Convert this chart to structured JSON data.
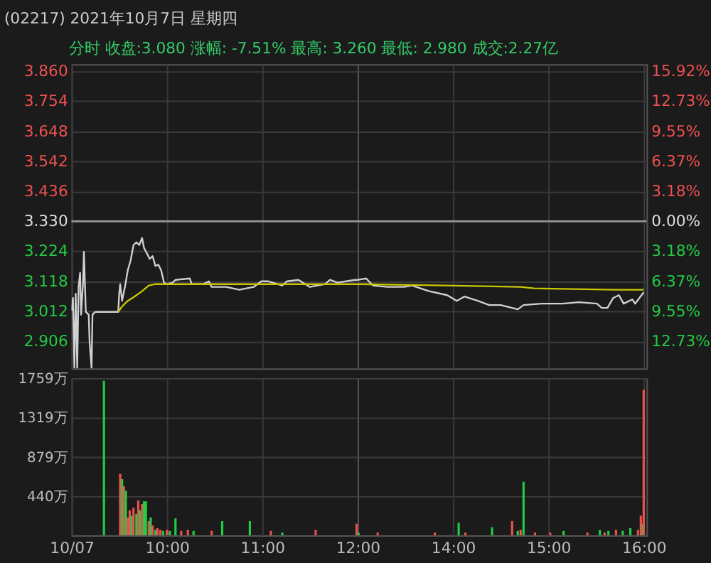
{
  "chart_data": [
    {
      "type": "line",
      "title": "(02217) 2021年10月7日 星期四",
      "subtitle": "分时  收盘:3.080  涨幅: -7.51%  最高: 3.260  最低: 2.980  成交:2.27亿",
      "series": [
        {
          "color": "#d0d0d0",
          "x": [
            9.0,
            9.015,
            9.03,
            9.044,
            9.06,
            9.074,
            9.09,
            9.1,
            9.12,
            9.13,
            9.15,
            9.18,
            9.19,
            9.21,
            9.22,
            9.25,
            9.49,
            9.5,
            9.51,
            9.53,
            9.56,
            9.59,
            9.62,
            9.65,
            9.68,
            9.71,
            9.74,
            9.76,
            9.79,
            9.82,
            9.85,
            9.88,
            9.91,
            9.94,
            9.97,
            10.0,
            10.06,
            10.09,
            10.24,
            10.26,
            10.38,
            10.44,
            10.47,
            10.62,
            10.76,
            10.91,
            10.99,
            11.06,
            11.21,
            11.26,
            11.38,
            11.5,
            11.66,
            11.71,
            11.79,
            11.97,
            12.0
          ],
          "values": [
            3.014,
            3.059,
            2.812,
            3.074,
            2.812,
            3.098,
            3.148,
            3.0,
            3.108,
            3.222,
            3.01,
            3.0,
            2.901,
            2.812,
            3.0,
            3.01,
            3.01,
            3.074,
            3.108,
            3.049,
            3.098,
            3.157,
            3.192,
            3.246,
            3.256,
            3.246,
            3.271,
            3.236,
            3.217,
            3.197,
            3.207,
            3.172,
            3.177,
            3.157,
            3.113,
            3.108,
            3.113,
            3.123,
            3.128,
            3.108,
            3.108,
            3.118,
            3.098,
            3.098,
            3.088,
            3.098,
            3.118,
            3.118,
            3.103,
            3.118,
            3.123,
            3.098,
            3.108,
            3.123,
            3.113,
            3.123,
            3.123
          ]
        },
        {
          "color": "#c8c800",
          "x": [
            9.49,
            9.53,
            9.59,
            9.66,
            9.74,
            9.81,
            9.88,
            11.21,
            12.0
          ],
          "values": [
            3.01,
            3.029,
            3.049,
            3.064,
            3.083,
            3.103,
            3.108,
            3.108,
            3.108
          ]
        }
      ],
      "xlim": [
        9,
        12
      ],
      "xticks": [
        9,
        10,
        11,
        12
      ],
      "ylim": [
        2.81,
        3.885
      ],
      "yticks": [
        {
          "value": 3.86,
          "label": "3.860"
        },
        {
          "value": 3.754,
          "label": "3.754"
        },
        {
          "value": 3.648,
          "label": "3.648"
        },
        {
          "value": 3.542,
          "label": "3.542"
        },
        {
          "value": 3.436,
          "label": "3.436"
        },
        {
          "value": 3.33,
          "label": "3.330"
        },
        {
          "value": 3.224,
          "label": "3.224"
        },
        {
          "value": 3.118,
          "label": "3.118"
        },
        {
          "value": 3.012,
          "label": "3.012"
        },
        {
          "value": 2.906,
          "label": "2.906"
        }
      ],
      "ref_lines": [
        {
          "axis": "y",
          "value": 3.33,
          "color": "#9a9a9a"
        }
      ],
      "grid": true,
      "tick_labels": "y"
    },
    {
      "type": "line",
      "series": [
        {
          "color": "#d0d0d0",
          "x": [
            13.0,
            13.09,
            13.16,
            13.31,
            13.49,
            13.57,
            13.75,
            13.94,
            14.04,
            14.12,
            14.26,
            14.38,
            14.5,
            14.68,
            14.74,
            14.93,
            15.15,
            15.32,
            15.51,
            15.56,
            15.62,
            15.68,
            15.74,
            15.79,
            15.88,
            15.91,
            16.0
          ],
          "values": [
            3.123,
            3.128,
            3.103,
            3.098,
            3.098,
            3.103,
            3.083,
            3.069,
            3.049,
            3.064,
            3.049,
            3.034,
            3.034,
            3.019,
            3.034,
            3.039,
            3.039,
            3.044,
            3.039,
            3.024,
            3.024,
            3.059,
            3.069,
            3.039,
            3.054,
            3.039,
            3.079
          ]
        },
        {
          "color": "#c8c800",
          "x": [
            13.0,
            13.93,
            14.71,
            14.85,
            15.71,
            16.0
          ],
          "values": [
            3.108,
            3.103,
            3.098,
            3.093,
            3.088,
            3.088
          ]
        }
      ],
      "xlim": [
        13,
        16.03
      ],
      "xticks": [
        14,
        15,
        16
      ],
      "ylim": [
        2.81,
        3.885
      ],
      "yticks": [
        3.86,
        3.754,
        3.648,
        3.542,
        3.436,
        3.33,
        3.224,
        3.118,
        3.012,
        2.906
      ],
      "y2lim": [
        -15.62,
        16.67
      ],
      "y2ticks": [
        {
          "value": 15.92,
          "label": "15.92%"
        },
        {
          "value": 12.73,
          "label": "12.73%"
        },
        {
          "value": 9.55,
          "label": "9.55%"
        },
        {
          "value": 6.37,
          "label": "6.37%"
        },
        {
          "value": 3.18,
          "label": "3.18%"
        },
        {
          "value": 0,
          "label": "0.00%"
        },
        {
          "value": -3.18,
          "label": "3.18%"
        },
        {
          "value": -6.37,
          "label": "6.37%"
        },
        {
          "value": -9.55,
          "label": "9.55%"
        },
        {
          "value": -12.73,
          "label": "12.73%"
        }
      ],
      "ref_lines": [
        {
          "axis": "y",
          "value": 3.33,
          "color": "#9a9a9a"
        }
      ],
      "grid": true,
      "tick_labels": false
    },
    {
      "type": "bar",
      "x": [
        9.34,
        9.51,
        9.53,
        9.55,
        9.57,
        9.59,
        9.61,
        9.63,
        9.65,
        9.68,
        9.7,
        9.72,
        9.74,
        9.76,
        9.78,
        9.81,
        9.83,
        9.85,
        9.88,
        9.9,
        9.93,
        9.96,
        10.0,
        10.03,
        10.09,
        10.15,
        10.22,
        10.28,
        10.47,
        10.58,
        10.87,
        11.09,
        11.21,
        11.56,
        11.99
      ],
      "values": [
        1730,
        690,
        630,
        550,
        500,
        200,
        280,
        220,
        310,
        240,
        390,
        280,
        350,
        380,
        380,
        160,
        200,
        110,
        60,
        80,
        60,
        50,
        60,
        50,
        190,
        50,
        60,
        50,
        50,
        160,
        160,
        50,
        30,
        60,
        130
      ],
      "colors": [
        "#22cc44",
        "#f05050",
        "#22cc44",
        "#f05050",
        "#22cc44",
        "#f05050",
        "#f05050",
        "#22cc44",
        "#f05050",
        "#22cc44",
        "#f05050",
        "#22cc44",
        "#f05050",
        "#22cc44",
        "#22cc44",
        "#f05050",
        "#22cc44",
        "#f05050",
        "#22cc44",
        "#f05050",
        "#f05050",
        "#22cc44",
        "#f05050",
        "#22cc44",
        "#22cc44",
        "#f05050",
        "#f05050",
        "#22cc44",
        "#f05050",
        "#22cc44",
        "#22cc44",
        "#f05050",
        "#22cc44",
        "#f05050",
        "#f05050"
      ],
      "xlim": [
        9,
        12
      ],
      "xticks": [
        {
          "value": 9,
          "label": "10/07"
        },
        {
          "value": 10,
          "label": "10:00"
        },
        {
          "value": 11,
          "label": "11:00"
        },
        {
          "value": 12,
          "label": "12:00"
        }
      ],
      "ylim": [
        0,
        1759
      ],
      "yticks": [
        {
          "value": 1759,
          "label": "1759万"
        },
        {
          "value": 1319,
          "label": "1319万"
        },
        {
          "value": 879,
          "label": "879万"
        },
        {
          "value": 440,
          "label": "440万"
        }
      ],
      "grid": true
    },
    {
      "type": "bar",
      "x": [
        13.01,
        13.21,
        13.81,
        14.06,
        14.13,
        14.41,
        14.62,
        14.68,
        14.71,
        14.74,
        14.86,
        15.02,
        15.16,
        15.41,
        15.54,
        15.59,
        15.63,
        15.71,
        15.78,
        15.86,
        15.94,
        15.97,
        15.99,
        16.0
      ],
      "values": [
        30,
        30,
        30,
        140,
        30,
        90,
        160,
        50,
        60,
        600,
        30,
        30,
        50,
        30,
        60,
        30,
        50,
        60,
        50,
        80,
        60,
        220,
        130,
        1630
      ],
      "colors": [
        "#22cc44",
        "#f05050",
        "#f05050",
        "#22cc44",
        "#f05050",
        "#22cc44",
        "#f05050",
        "#22cc44",
        "#f05050",
        "#22cc44",
        "#f05050",
        "#f05050",
        "#22cc44",
        "#f05050",
        "#22cc44",
        "#f05050",
        "#22cc44",
        "#f05050",
        "#22cc44",
        "#22cc44",
        "#f05050",
        "#f05050",
        "#22cc44",
        "#f05050"
      ],
      "xlim": [
        13,
        16.03
      ],
      "xticks": [
        {
          "value": 14,
          "label": "14:00"
        },
        {
          "value": 15,
          "label": "15:00"
        },
        {
          "value": 16,
          "label": "16:00"
        }
      ],
      "ylim": [
        0,
        1759
      ],
      "yticks": [
        1759,
        1319,
        879,
        440
      ],
      "grid": true,
      "tick_labels": "x"
    }
  ]
}
